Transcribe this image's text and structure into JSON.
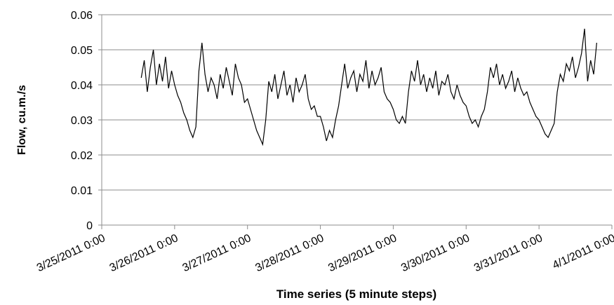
{
  "chart_data": {
    "type": "line",
    "xlabel": "Time series (5 minute steps)",
    "ylabel": "Flow, cu.m./s",
    "ylim": [
      0,
      0.06
    ],
    "yticks": [
      0,
      0.01,
      0.02,
      0.03,
      0.04,
      0.05,
      0.06
    ],
    "grid": true,
    "xlim": [
      "3/25/2011 0:00",
      "4/1/2011 0:00"
    ],
    "xticks": [
      "3/25/2011 0:00",
      "3/26/2011 0:00",
      "3/27/2011 0:00",
      "3/28/2011 0:00",
      "3/29/2011 0:00",
      "3/30/2011 0:00",
      "3/31/2011 0:00",
      "4/1/2011 0:00"
    ],
    "x": [
      "3/25/2011 13:00",
      "3/25/2011 14:00",
      "3/25/2011 15:00",
      "3/25/2011 16:00",
      "3/25/2011 17:00",
      "3/25/2011 18:00",
      "3/25/2011 19:00",
      "3/25/2011 20:00",
      "3/25/2011 21:00",
      "3/25/2011 22:00",
      "3/25/2011 23:00",
      "3/26/2011 0:00",
      "3/26/2011 1:00",
      "3/26/2011 2:00",
      "3/26/2011 3:00",
      "3/26/2011 4:00",
      "3/26/2011 5:00",
      "3/26/2011 6:00",
      "3/26/2011 7:00",
      "3/26/2011 8:00",
      "3/26/2011 9:00",
      "3/26/2011 10:00",
      "3/26/2011 11:00",
      "3/26/2011 12:00",
      "3/26/2011 13:00",
      "3/26/2011 14:00",
      "3/26/2011 15:00",
      "3/26/2011 16:00",
      "3/26/2011 17:00",
      "3/26/2011 18:00",
      "3/26/2011 19:00",
      "3/26/2011 20:00",
      "3/26/2011 21:00",
      "3/26/2011 22:00",
      "3/26/2011 23:00",
      "3/27/2011 0:00",
      "3/27/2011 1:00",
      "3/27/2011 2:00",
      "3/27/2011 3:00",
      "3/27/2011 4:00",
      "3/27/2011 5:00",
      "3/27/2011 6:00",
      "3/27/2011 7:00",
      "3/27/2011 8:00",
      "3/27/2011 9:00",
      "3/27/2011 10:00",
      "3/27/2011 11:00",
      "3/27/2011 12:00",
      "3/27/2011 13:00",
      "3/27/2011 14:00",
      "3/27/2011 15:00",
      "3/27/2011 16:00",
      "3/27/2011 17:00",
      "3/27/2011 18:00",
      "3/27/2011 19:00",
      "3/27/2011 20:00",
      "3/27/2011 21:00",
      "3/27/2011 22:00",
      "3/27/2011 23:00",
      "3/28/2011 0:00",
      "3/28/2011 1:00",
      "3/28/2011 2:00",
      "3/28/2011 3:00",
      "3/28/2011 4:00",
      "3/28/2011 5:00",
      "3/28/2011 6:00",
      "3/28/2011 7:00",
      "3/28/2011 8:00",
      "3/28/2011 9:00",
      "3/28/2011 10:00",
      "3/28/2011 11:00",
      "3/28/2011 12:00",
      "3/28/2011 13:00",
      "3/28/2011 14:00",
      "3/28/2011 15:00",
      "3/28/2011 16:00",
      "3/28/2011 17:00",
      "3/28/2011 18:00",
      "3/28/2011 19:00",
      "3/28/2011 20:00",
      "3/28/2011 21:00",
      "3/28/2011 22:00",
      "3/28/2011 23:00",
      "3/29/2011 0:00",
      "3/29/2011 1:00",
      "3/29/2011 2:00",
      "3/29/2011 3:00",
      "3/29/2011 4:00",
      "3/29/2011 5:00",
      "3/29/2011 6:00",
      "3/29/2011 7:00",
      "3/29/2011 8:00",
      "3/29/2011 9:00",
      "3/29/2011 10:00",
      "3/29/2011 11:00",
      "3/29/2011 12:00",
      "3/29/2011 13:00",
      "3/29/2011 14:00",
      "3/29/2011 15:00",
      "3/29/2011 16:00",
      "3/29/2011 17:00",
      "3/29/2011 18:00",
      "3/29/2011 19:00",
      "3/29/2011 20:00",
      "3/29/2011 21:00",
      "3/29/2011 22:00",
      "3/29/2011 23:00",
      "3/30/2011 0:00",
      "3/30/2011 1:00",
      "3/30/2011 2:00",
      "3/30/2011 3:00",
      "3/30/2011 4:00",
      "3/30/2011 5:00",
      "3/30/2011 6:00",
      "3/30/2011 7:00",
      "3/30/2011 8:00",
      "3/30/2011 9:00",
      "3/30/2011 10:00",
      "3/30/2011 11:00",
      "3/30/2011 12:00",
      "3/30/2011 13:00",
      "3/30/2011 14:00",
      "3/30/2011 15:00",
      "3/30/2011 16:00",
      "3/30/2011 17:00",
      "3/30/2011 18:00",
      "3/30/2011 19:00",
      "3/30/2011 20:00",
      "3/30/2011 21:00",
      "3/30/2011 22:00",
      "3/30/2011 23:00",
      "3/31/2011 0:00",
      "3/31/2011 1:00",
      "3/31/2011 2:00",
      "3/31/2011 3:00",
      "3/31/2011 4:00",
      "3/31/2011 5:00",
      "3/31/2011 6:00",
      "3/31/2011 7:00",
      "3/31/2011 8:00",
      "3/31/2011 9:00",
      "3/31/2011 10:00",
      "3/31/2011 11:00",
      "3/31/2011 12:00",
      "3/31/2011 13:00",
      "3/31/2011 14:00",
      "3/31/2011 15:00",
      "3/31/2011 16:00",
      "3/31/2011 17:00",
      "3/31/2011 18:00",
      "3/31/2011 19:00"
    ],
    "series": [
      {
        "color": "#000000",
        "values": [
          0.042,
          0.047,
          0.038,
          0.045,
          0.05,
          0.04,
          0.046,
          0.041,
          0.048,
          0.039,
          0.044,
          0.04,
          0.037,
          0.035,
          0.032,
          0.03,
          0.027,
          0.025,
          0.028,
          0.044,
          0.052,
          0.043,
          0.038,
          0.042,
          0.04,
          0.036,
          0.043,
          0.039,
          0.045,
          0.041,
          0.037,
          0.046,
          0.042,
          0.04,
          0.035,
          0.036,
          0.033,
          0.03,
          0.027,
          0.025,
          0.023,
          0.03,
          0.041,
          0.038,
          0.043,
          0.036,
          0.04,
          0.044,
          0.037,
          0.04,
          0.035,
          0.042,
          0.038,
          0.04,
          0.043,
          0.036,
          0.033,
          0.034,
          0.031,
          0.031,
          0.028,
          0.024,
          0.027,
          0.025,
          0.03,
          0.034,
          0.04,
          0.046,
          0.039,
          0.042,
          0.044,
          0.038,
          0.043,
          0.041,
          0.047,
          0.039,
          0.044,
          0.04,
          0.042,
          0.045,
          0.038,
          0.036,
          0.035,
          0.033,
          0.03,
          0.029,
          0.031,
          0.029,
          0.038,
          0.044,
          0.041,
          0.047,
          0.04,
          0.043,
          0.038,
          0.042,
          0.039,
          0.044,
          0.037,
          0.041,
          0.04,
          0.043,
          0.038,
          0.036,
          0.04,
          0.037,
          0.035,
          0.034,
          0.031,
          0.029,
          0.03,
          0.028,
          0.031,
          0.033,
          0.038,
          0.045,
          0.042,
          0.046,
          0.04,
          0.043,
          0.039,
          0.041,
          0.044,
          0.038,
          0.042,
          0.039,
          0.037,
          0.038,
          0.035,
          0.033,
          0.031,
          0.03,
          0.028,
          0.026,
          0.025,
          0.027,
          0.029,
          0.038,
          0.043,
          0.041,
          0.046,
          0.044,
          0.048,
          0.042,
          0.045,
          0.049,
          0.056,
          0.041,
          0.047,
          0.043,
          0.052
        ]
      }
    ]
  }
}
